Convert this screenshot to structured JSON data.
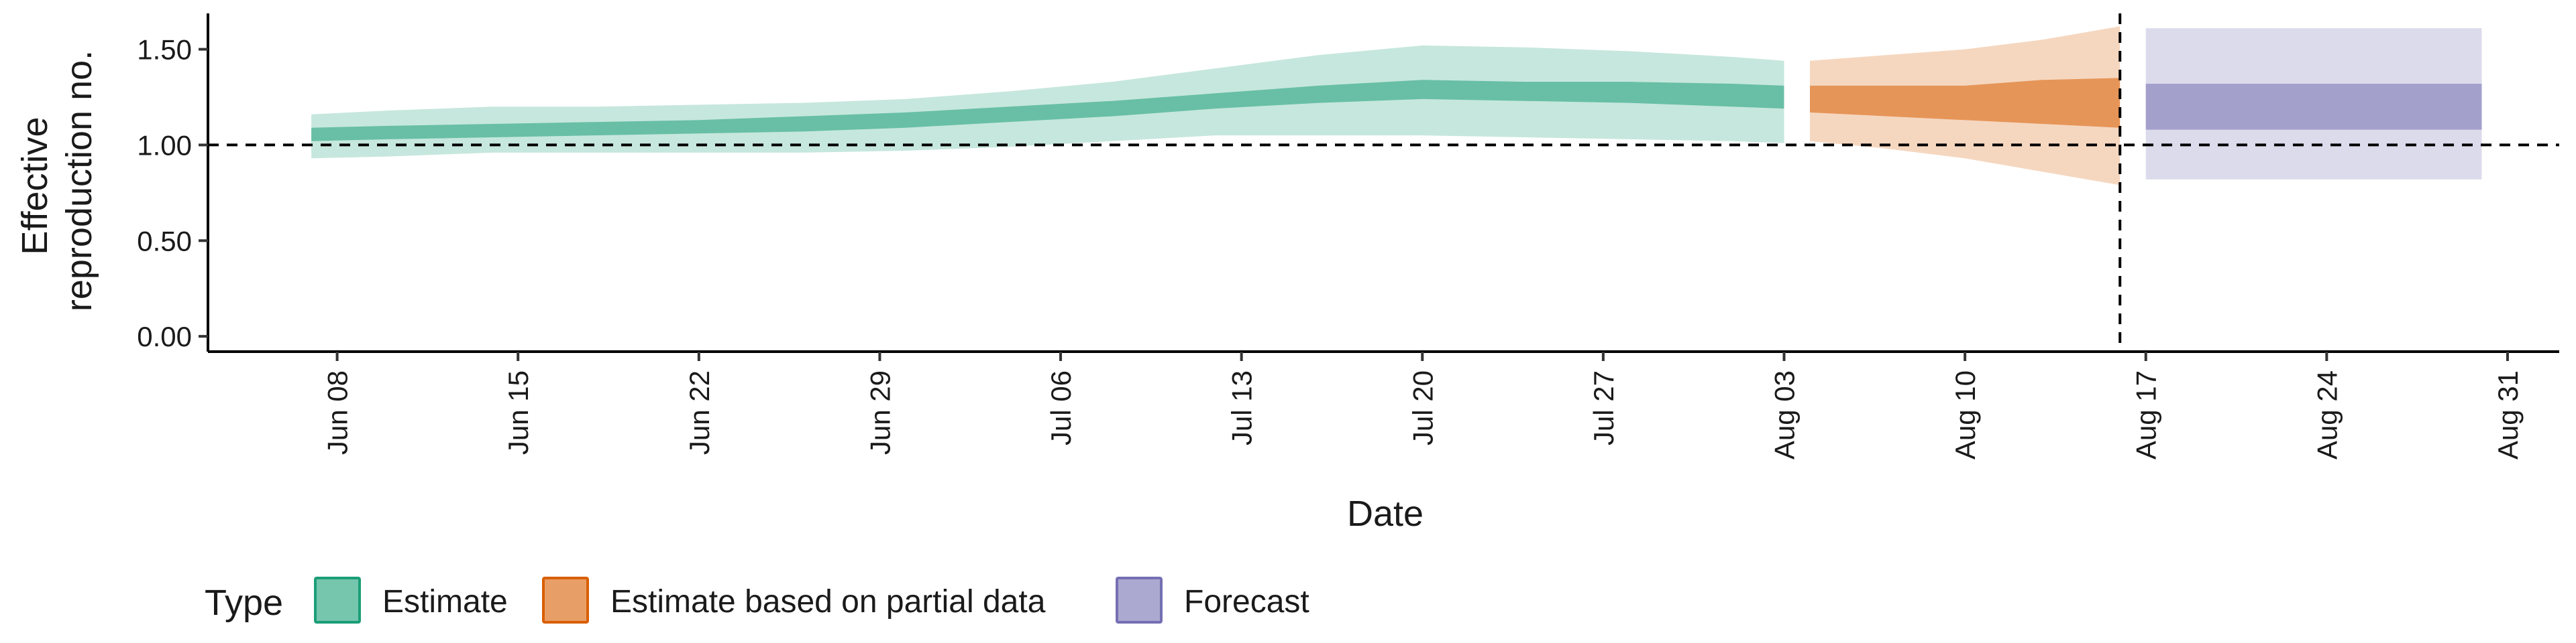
{
  "chart_data": {
    "type": "area",
    "xlabel": "Date",
    "ylabel": "Effective reproduction no.",
    "ylabel_lines": [
      "Effective",
      "reproduction no."
    ],
    "ylim": [
      -0.08,
      1.67
    ],
    "xlim": [
      "2020-06-03",
      "2020-09-02"
    ],
    "y_ticks": [
      {
        "value": 0.0,
        "label": "0.00"
      },
      {
        "value": 0.5,
        "label": "0.50"
      },
      {
        "value": 1.0,
        "label": "1.00"
      },
      {
        "value": 1.5,
        "label": "1.50"
      }
    ],
    "x_ticks": [
      {
        "date": "2020-06-08",
        "label": "Jun 08"
      },
      {
        "date": "2020-06-15",
        "label": "Jun 15"
      },
      {
        "date": "2020-06-22",
        "label": "Jun 22"
      },
      {
        "date": "2020-06-29",
        "label": "Jun 29"
      },
      {
        "date": "2020-07-06",
        "label": "Jul 06"
      },
      {
        "date": "2020-07-13",
        "label": "Jul 13"
      },
      {
        "date": "2020-07-20",
        "label": "Jul 20"
      },
      {
        "date": "2020-07-27",
        "label": "Jul 27"
      },
      {
        "date": "2020-08-03",
        "label": "Aug 03"
      },
      {
        "date": "2020-08-10",
        "label": "Aug 10"
      },
      {
        "date": "2020-08-17",
        "label": "Aug 17"
      },
      {
        "date": "2020-08-24",
        "label": "Aug 24"
      },
      {
        "date": "2020-08-31",
        "label": "Aug 31"
      }
    ],
    "reference_line_y": 1.0,
    "reference_line_date": "2020-08-16",
    "grid": false,
    "legend": {
      "title": "Type",
      "position": "bottom-left",
      "entries": [
        {
          "name": "Estimate",
          "color": "#1b9e77"
        },
        {
          "name": "Estimate based on partial data",
          "color": "#d95f02"
        },
        {
          "name": "Forecast",
          "color": "#7570b3"
        }
      ]
    },
    "series": [
      {
        "name": "Estimate",
        "color": "#1b9e77",
        "points": [
          {
            "date": "2020-06-07",
            "lower90": 0.93,
            "lower50": 1.02,
            "upper50": 1.09,
            "upper90": 1.16
          },
          {
            "date": "2020-06-10",
            "lower90": 0.94,
            "lower50": 1.03,
            "upper50": 1.1,
            "upper90": 1.18
          },
          {
            "date": "2020-06-14",
            "lower90": 0.96,
            "lower50": 1.04,
            "upper50": 1.11,
            "upper90": 1.2
          },
          {
            "date": "2020-06-18",
            "lower90": 0.96,
            "lower50": 1.05,
            "upper50": 1.12,
            "upper90": 1.2
          },
          {
            "date": "2020-06-22",
            "lower90": 0.96,
            "lower50": 1.06,
            "upper50": 1.13,
            "upper90": 1.21
          },
          {
            "date": "2020-06-26",
            "lower90": 0.96,
            "lower50": 1.07,
            "upper50": 1.15,
            "upper90": 1.22
          },
          {
            "date": "2020-06-30",
            "lower90": 0.97,
            "lower50": 1.09,
            "upper50": 1.17,
            "upper90": 1.24
          },
          {
            "date": "2020-07-04",
            "lower90": 0.99,
            "lower50": 1.12,
            "upper50": 1.2,
            "upper90": 1.28
          },
          {
            "date": "2020-07-08",
            "lower90": 1.02,
            "lower50": 1.15,
            "upper50": 1.23,
            "upper90": 1.33
          },
          {
            "date": "2020-07-12",
            "lower90": 1.05,
            "lower50": 1.19,
            "upper50": 1.27,
            "upper90": 1.4
          },
          {
            "date": "2020-07-16",
            "lower90": 1.05,
            "lower50": 1.22,
            "upper50": 1.31,
            "upper90": 1.47
          },
          {
            "date": "2020-07-20",
            "lower90": 1.05,
            "lower50": 1.24,
            "upper50": 1.34,
            "upper90": 1.52
          },
          {
            "date": "2020-07-24",
            "lower90": 1.04,
            "lower50": 1.23,
            "upper50": 1.33,
            "upper90": 1.51
          },
          {
            "date": "2020-07-28",
            "lower90": 1.03,
            "lower50": 1.22,
            "upper50": 1.33,
            "upper90": 1.49
          },
          {
            "date": "2020-08-01",
            "lower90": 1.02,
            "lower50": 1.2,
            "upper50": 1.32,
            "upper90": 1.46
          },
          {
            "date": "2020-08-03",
            "lower90": 1.01,
            "lower50": 1.19,
            "upper50": 1.31,
            "upper90": 1.44
          }
        ]
      },
      {
        "name": "Estimate based on partial data",
        "color": "#d95f02",
        "points": [
          {
            "date": "2020-08-04",
            "lower90": 1.02,
            "lower50": 1.17,
            "upper50": 1.31,
            "upper90": 1.44
          },
          {
            "date": "2020-08-07",
            "lower90": 0.98,
            "lower50": 1.15,
            "upper50": 1.31,
            "upper90": 1.47
          },
          {
            "date": "2020-08-10",
            "lower90": 0.93,
            "lower50": 1.13,
            "upper50": 1.31,
            "upper90": 1.5
          },
          {
            "date": "2020-08-13",
            "lower90": 0.86,
            "lower50": 1.11,
            "upper50": 1.34,
            "upper90": 1.55
          },
          {
            "date": "2020-08-16",
            "lower90": 0.79,
            "lower50": 1.09,
            "upper50": 1.35,
            "upper90": 1.62
          }
        ]
      },
      {
        "name": "Forecast",
        "color": "#7570b3",
        "points": [
          {
            "date": "2020-08-17",
            "lower90": 0.82,
            "lower50": 1.08,
            "upper50": 1.32,
            "upper90": 1.61
          },
          {
            "date": "2020-08-30",
            "lower90": 0.82,
            "lower50": 1.08,
            "upper50": 1.32,
            "upper90": 1.61
          }
        ]
      }
    ]
  }
}
